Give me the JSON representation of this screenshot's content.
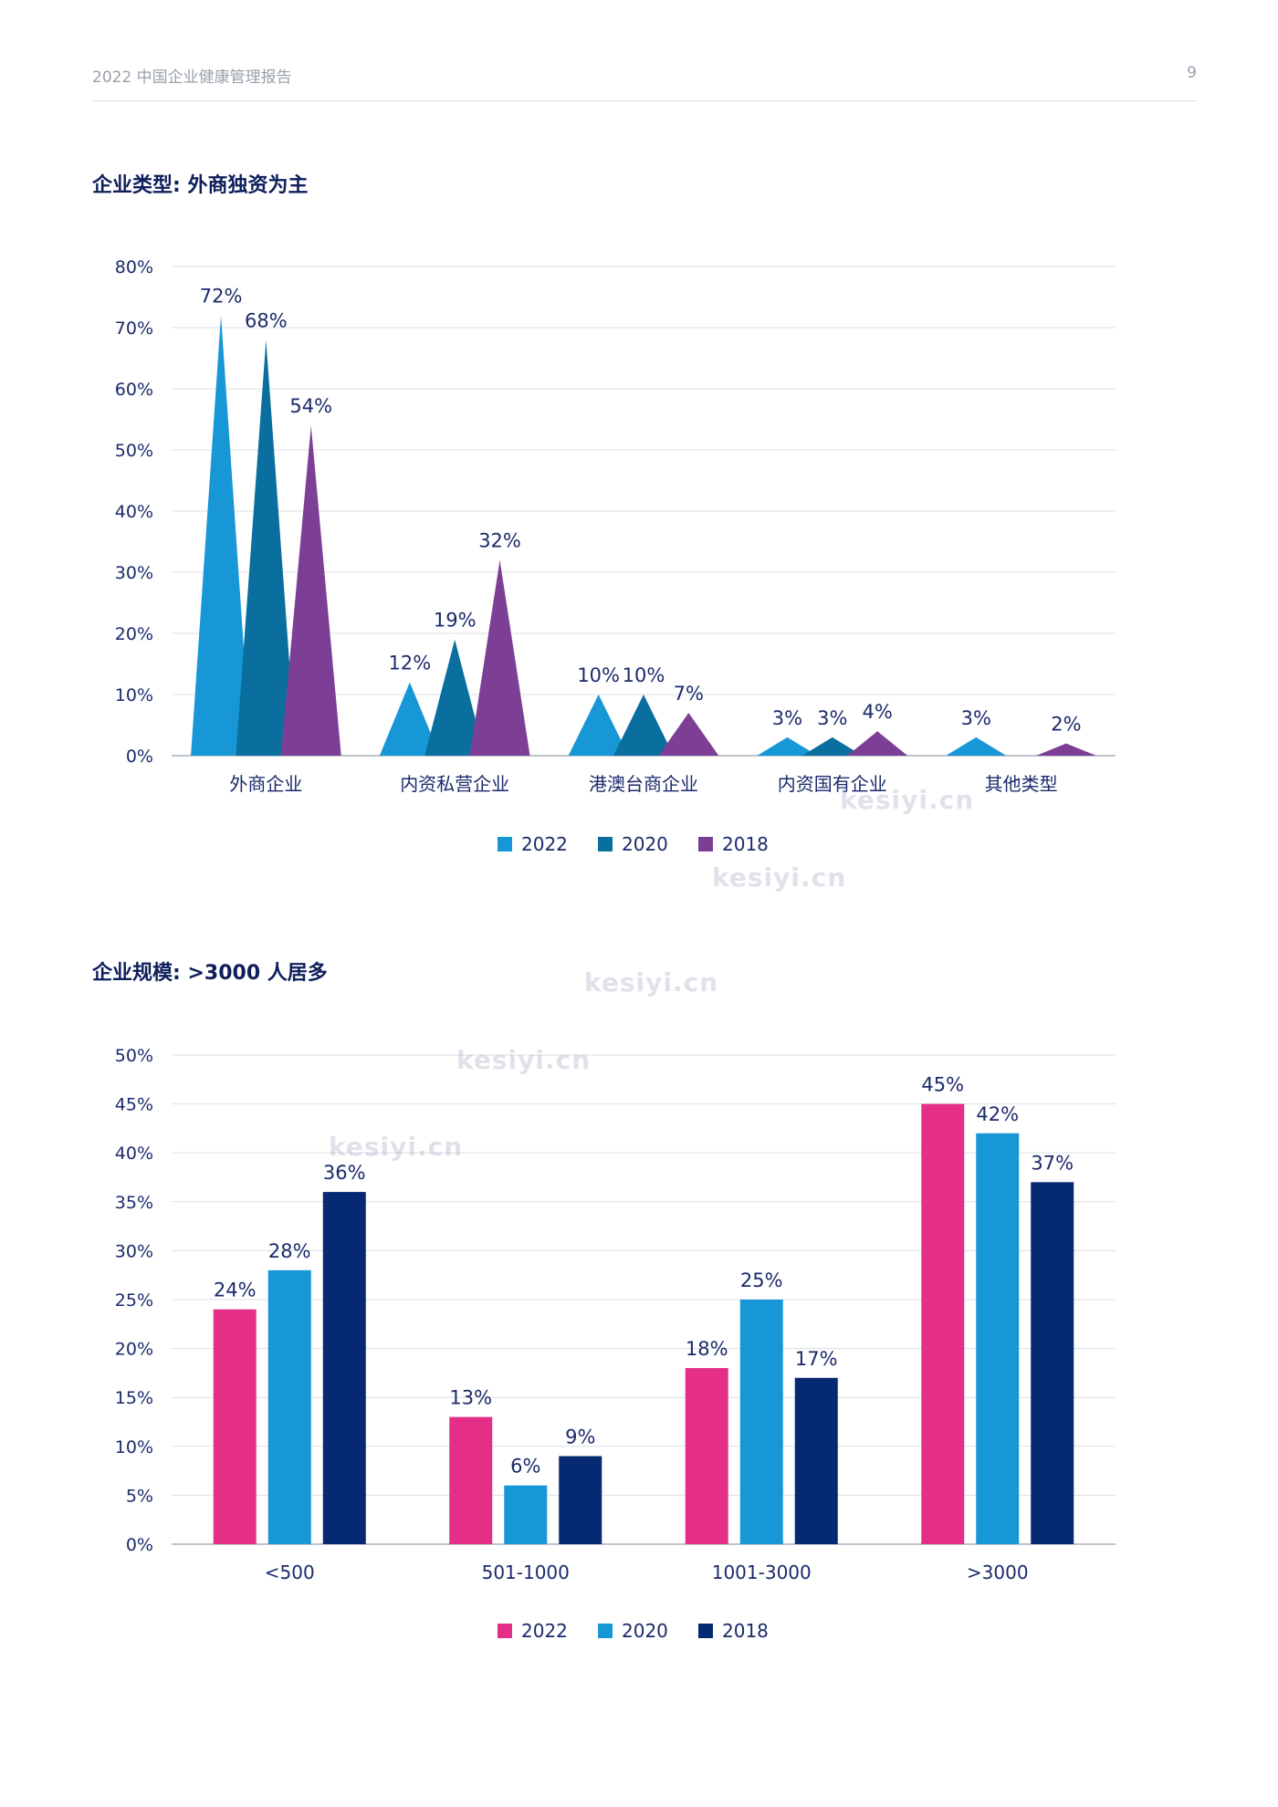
{
  "header": {
    "title": "2022 中国企业健康管理报告",
    "page_number": "9"
  },
  "sections": [
    {
      "title": "企业类型: 外商独资为主"
    },
    {
      "title": "企业规模: >3000 人居多"
    }
  ],
  "watermark": "kesiyi.cn",
  "chart_data": [
    {
      "type": "bar",
      "mark_shape": "triangle",
      "categories": [
        "外商企业",
        "内资私营企业",
        "港澳台商企业",
        "内资国有企业",
        "其他类型"
      ],
      "series": [
        {
          "name": "2022",
          "color": "#1797d6",
          "values": [
            72,
            12,
            10,
            3,
            3
          ]
        },
        {
          "name": "2020",
          "color": "#0a6f9e",
          "values": [
            68,
            19,
            10,
            3,
            0
          ]
        },
        {
          "name": "2018",
          "color": "#7d3f96",
          "values": [
            54,
            32,
            7,
            4,
            2
          ]
        }
      ],
      "value_labels": [
        [
          "72%",
          "12%",
          "10%",
          "3%",
          "3%"
        ],
        [
          "68%",
          "19%",
          "10%",
          "3%",
          ""
        ],
        [
          "54%",
          "32%",
          "7%",
          "4%",
          "2%"
        ]
      ],
      "ylim": [
        0,
        80
      ],
      "ytick_values": [
        0,
        10,
        20,
        30,
        40,
        50,
        60,
        70,
        80
      ],
      "ytick_labels": [
        "0%",
        "10%",
        "20%",
        "30%",
        "40%",
        "50%",
        "60%",
        "70%",
        "80%"
      ],
      "grid": true,
      "legend": "bottom-center"
    },
    {
      "type": "bar",
      "categories": [
        "<500",
        "501-1000",
        "1001-3000",
        ">3000"
      ],
      "series": [
        {
          "name": "2022",
          "color": "#e52f86",
          "values": [
            24,
            13,
            18,
            45
          ]
        },
        {
          "name": "2020",
          "color": "#1797d6",
          "values": [
            28,
            6,
            25,
            42
          ]
        },
        {
          "name": "2018",
          "color": "#052a72",
          "values": [
            36,
            9,
            17,
            37
          ]
        }
      ],
      "value_labels": [
        [
          "24%",
          "13%",
          "18%",
          "45%"
        ],
        [
          "28%",
          "6%",
          "25%",
          "42%"
        ],
        [
          "36%",
          "9%",
          "17%",
          "37%"
        ]
      ],
      "ylim": [
        0,
        50
      ],
      "ytick_values": [
        0,
        5,
        10,
        15,
        20,
        25,
        30,
        35,
        40,
        45,
        50
      ],
      "ytick_labels": [
        "0%",
        "5%",
        "10%",
        "15%",
        "20%",
        "25%",
        "30%",
        "35%",
        "40%",
        "45%",
        "50%"
      ],
      "grid": true,
      "legend": "bottom-center"
    }
  ]
}
